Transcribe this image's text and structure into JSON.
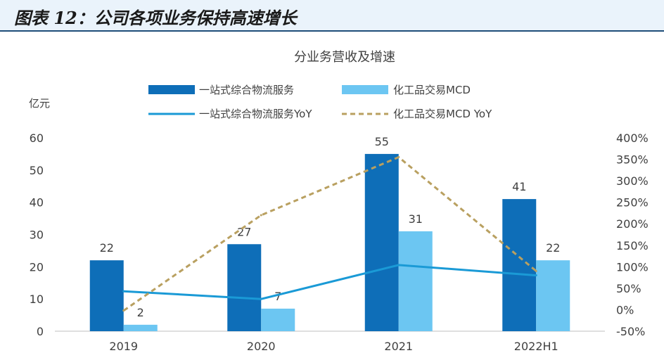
{
  "figure_title": "图表 12：公司各项业务保持高速增长",
  "chart_data": {
    "type": "bar",
    "title": "分业务营收及增速",
    "ylabel": "亿元",
    "categories": [
      "2019",
      "2020",
      "2021",
      "2022H1"
    ],
    "ylim": [
      0,
      60
    ],
    "y_ticks": [
      "0",
      "10",
      "20",
      "30",
      "40",
      "50",
      "60"
    ],
    "y2lim": [
      -50,
      400
    ],
    "y2_ticks": [
      "-50%",
      "0%",
      "50%",
      "100%",
      "150%",
      "200%",
      "250%",
      "300%",
      "350%",
      "400%"
    ],
    "series": [
      {
        "name": "一站式综合物流服务",
        "kind": "bar",
        "axis": "left",
        "color": "#0e6eb8",
        "values": [
          22,
          27,
          55,
          41
        ],
        "labels": [
          "22",
          "27",
          "55",
          "41"
        ]
      },
      {
        "name": "化工品交易MCD",
        "kind": "bar",
        "axis": "left",
        "color": "#6cc6f2",
        "values": [
          2,
          7,
          31,
          22
        ],
        "labels": [
          "2",
          "7",
          "31",
          "22"
        ]
      },
      {
        "name": "一站式综合物流服务YoY",
        "kind": "line",
        "axis": "right",
        "color": "#1a9ad6",
        "values": [
          43,
          25,
          104,
          80
        ]
      },
      {
        "name": "化工品交易MCD YoY",
        "kind": "line-dashed",
        "axis": "right",
        "color": "#b9a060",
        "values": [
          -2,
          220,
          355,
          90
        ]
      }
    ],
    "grid": false,
    "legend": "top"
  }
}
